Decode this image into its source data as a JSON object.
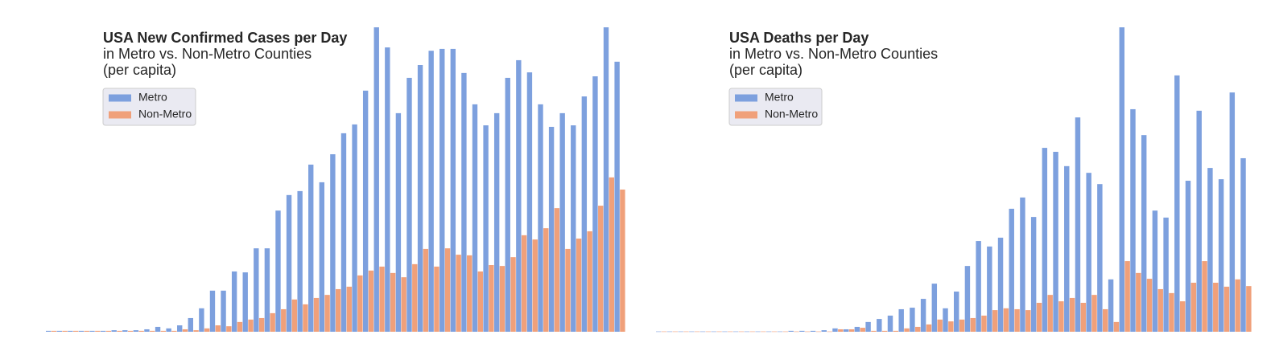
{
  "chart_data": [
    {
      "type": "bar",
      "title": "USA New Confirmed Cases per Day",
      "subtitle": [
        "in Metro vs. Non-Metro Counties",
        "(per capita)"
      ],
      "ylim": [
        0,
        100
      ],
      "legend": "upper left",
      "series": [
        {
          "name": "Metro",
          "color": "#7da0de",
          "values": [
            0.3,
            0.3,
            0.3,
            0.3,
            0.3,
            0.3,
            0.5,
            0.5,
            0.5,
            0.8,
            1.6,
            1.1,
            2.1,
            4.5,
            7.7,
            13.5,
            13.5,
            19.8,
            19.5,
            27.4,
            27.4,
            39.8,
            44.9,
            46.2,
            54.9,
            49.1,
            58.3,
            65.2,
            68.1,
            79.2,
            100,
            93.4,
            71.8,
            83.4,
            87.6,
            92.3,
            92.9,
            92.9,
            85,
            74.7,
            67.8,
            71.8,
            83.4,
            89.2,
            85.2,
            74.7,
            67.3,
            71.8,
            67.8,
            77.3,
            83.9,
            100,
            88.7
          ]
        },
        {
          "name": "Non-Metro",
          "color": "#f0a07a",
          "values": [
            0.3,
            0.3,
            0.3,
            0.3,
            0.3,
            0.3,
            0.3,
            0.3,
            0.3,
            0.3,
            0.3,
            0.3,
            0.8,
            0.5,
            1.1,
            2.1,
            1.8,
            3.2,
            4,
            4.5,
            6.1,
            7.4,
            10.6,
            9,
            11.1,
            12.1,
            14,
            14.8,
            18.5,
            20.1,
            21.4,
            19.3,
            17.9,
            22.2,
            27.2,
            21.4,
            27.4,
            25.3,
            25.1,
            19.8,
            21.9,
            21.6,
            24.5,
            31.7,
            30.3,
            34,
            40.6,
            27.2,
            30.6,
            33,
            41.4,
            50.7,
            46.7
          ]
        }
      ]
    },
    {
      "type": "bar",
      "title": "USA Deaths per Day",
      "subtitle": [
        "in Metro vs. Non-Metro Counties",
        "(per capita)"
      ],
      "ylim": [
        0,
        100
      ],
      "legend": "upper left",
      "series": [
        {
          "name": "Metro",
          "color": "#7da0de",
          "values": [
            0.1,
            0.1,
            0.1,
            0.1,
            0.1,
            0.1,
            0.1,
            0.1,
            0.1,
            0.1,
            0.1,
            0.1,
            0.3,
            0.3,
            0.3,
            0.5,
            1.1,
            0.8,
            1.6,
            3.2,
            4.2,
            5.3,
            7.4,
            7.9,
            10.8,
            15.8,
            7.7,
            13.2,
            21.6,
            29.8,
            28,
            30.9,
            40.4,
            44.1,
            37.7,
            60.4,
            59.1,
            54.4,
            70.4,
            52.2,
            48.5,
            17.2,
            100,
            73.1,
            64.6,
            39.8,
            37.5,
            84.2,
            49.6,
            72.6,
            53.8,
            50.1,
            78.6,
            57
          ]
        },
        {
          "name": "Non-Metro",
          "color": "#f0a07a",
          "values": [
            0.1,
            0.1,
            0.1,
            0.1,
            0.1,
            0.1,
            0.1,
            0.1,
            0.1,
            0.1,
            0.1,
            0.1,
            0.1,
            0.1,
            0.1,
            0.1,
            0.8,
            0.8,
            1.3,
            0.3,
            0.3,
            0.3,
            1.1,
            1.6,
            2.4,
            4,
            3.4,
            4,
            4.5,
            5.3,
            7.1,
            7.7,
            7.4,
            7.1,
            9.5,
            12.1,
            10,
            11.1,
            9.5,
            12.1,
            7.4,
            3.2,
            23.2,
            19.3,
            17.4,
            14,
            12.7,
            10,
            16.1,
            23.2,
            16.1,
            14.8,
            17.2,
            15
          ]
        }
      ]
    }
  ]
}
